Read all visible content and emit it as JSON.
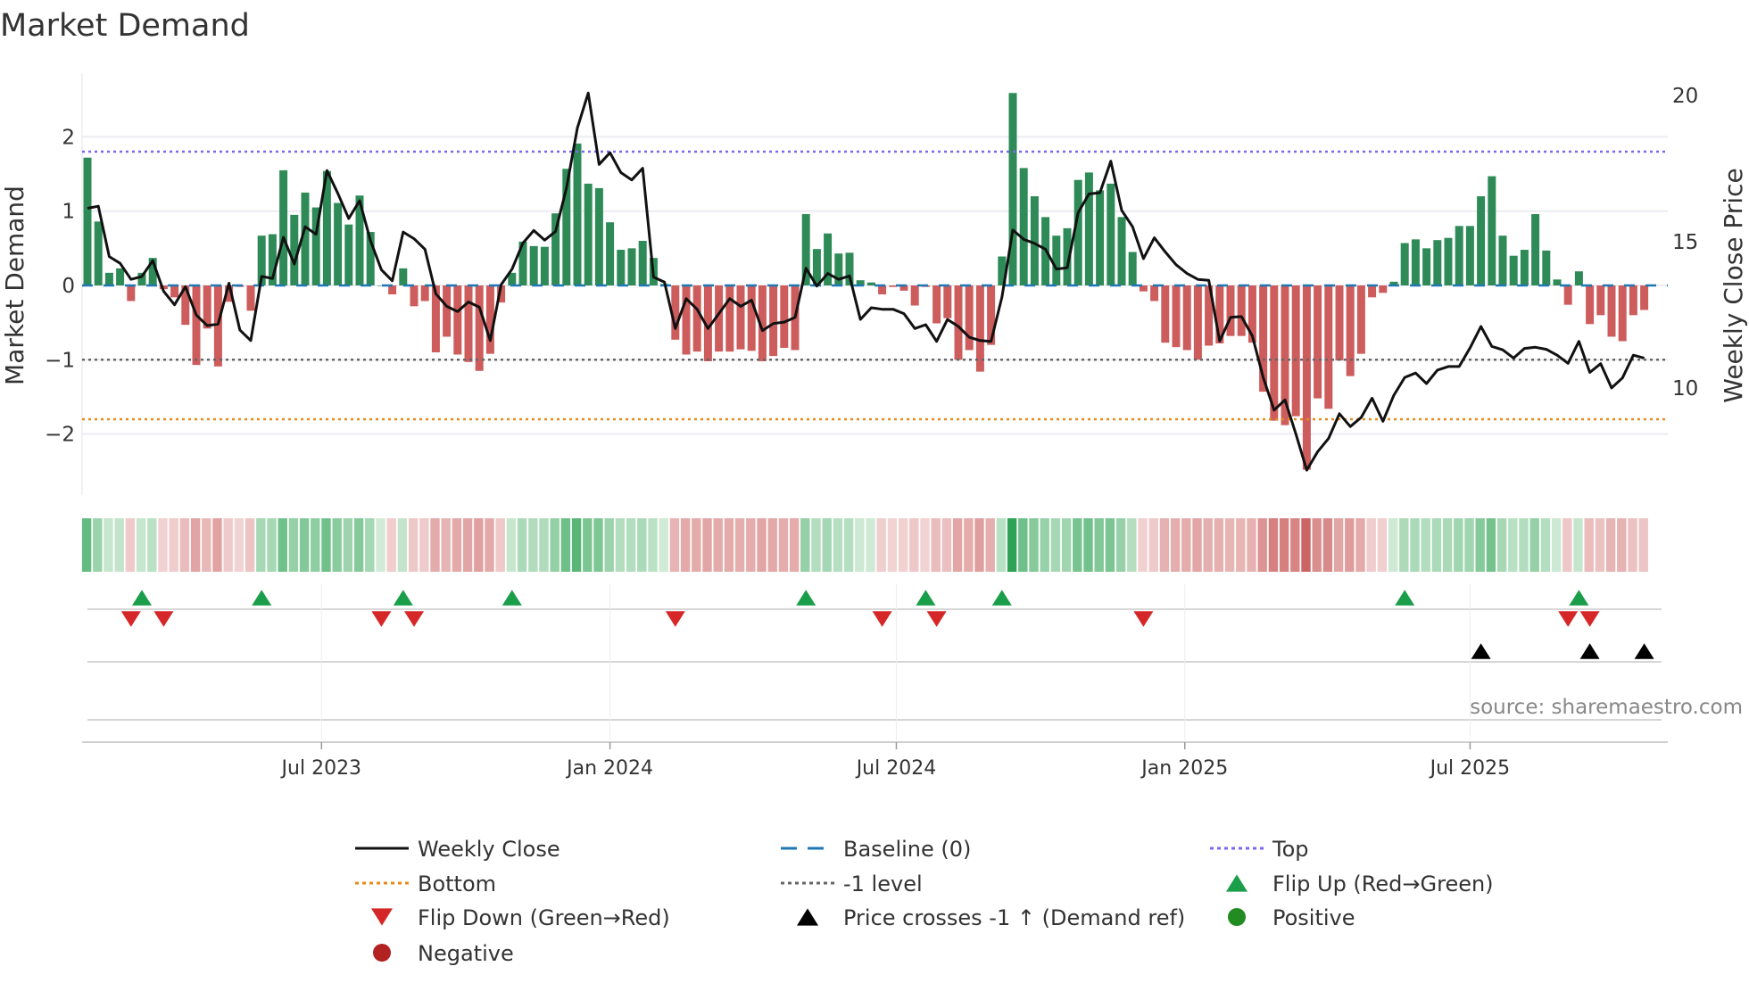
{
  "chart_data": {
    "type": "bar",
    "title": "Market Demand",
    "ylabel": "Market Demand",
    "y2label": "Weekly Close Price",
    "ylim": [
      -2.6,
      2.8
    ],
    "y2lim": [
      7.6,
      23.3
    ],
    "yticks": [
      -2,
      -1,
      0,
      1,
      2
    ],
    "ytick_labels": [
      "−2",
      "−1",
      "0",
      "1",
      "2"
    ],
    "y2ticks": [
      10,
      15,
      20
    ],
    "y2tick_labels": [
      "10",
      "15",
      "20"
    ],
    "xtick_labels": [
      "Jul 2023",
      "Jan 2024",
      "Jul 2024",
      "Jan 2025",
      "Jul 2025"
    ],
    "xtick_index": [
      21.5,
      48,
      74.3,
      100.8,
      127
    ],
    "frequency": "weekly",
    "levels": {
      "top": 1.8,
      "bottom": -1.8,
      "minus_one": -1,
      "baseline": 0
    },
    "demand": [
      1.72,
      0.86,
      0.17,
      0.23,
      -0.21,
      0.17,
      0.37,
      -0.05,
      -0.16,
      -0.53,
      -1.07,
      -0.58,
      -1.09,
      -0.22,
      -0.02,
      -0.34,
      0.67,
      0.69,
      1.55,
      0.95,
      1.25,
      1.05,
      1.54,
      1.11,
      0.82,
      1.21,
      0.72,
      0.0,
      -0.12,
      0.23,
      -0.28,
      -0.21,
      -0.9,
      -0.69,
      -0.93,
      -1.03,
      -1.15,
      -0.92,
      -0.23,
      0.17,
      0.59,
      0.53,
      0.52,
      0.97,
      1.57,
      1.91,
      1.37,
      1.31,
      0.85,
      0.48,
      0.5,
      0.6,
      0.37,
      0.02,
      -0.73,
      -0.93,
      -0.89,
      -1.02,
      -0.89,
      -0.89,
      -0.86,
      -0.88,
      -1.02,
      -0.95,
      -0.84,
      -0.87,
      0.96,
      0.49,
      0.7,
      0.43,
      0.44,
      0.07,
      0.04,
      -0.12,
      -0.02,
      -0.07,
      -0.27,
      -0.02,
      -0.51,
      -0.44,
      -1.0,
      -0.87,
      -1.16,
      -0.8,
      0.39,
      2.59,
      1.58,
      1.2,
      0.92,
      0.67,
      0.77,
      1.42,
      1.52,
      1.28,
      1.37,
      0.92,
      0.45,
      -0.08,
      -0.21,
      -0.77,
      -0.83,
      -0.87,
      -1.0,
      -0.81,
      -0.78,
      -0.68,
      -0.68,
      -0.77,
      -1.43,
      -1.82,
      -1.88,
      -1.76,
      -2.48,
      -1.52,
      -1.66,
      -1.01,
      -1.22,
      -0.92,
      -0.16,
      -0.1,
      0.05,
      0.57,
      0.62,
      0.5,
      0.61,
      0.64,
      0.8,
      0.8,
      1.2,
      1.47,
      0.67,
      0.4,
      0.48,
      0.96,
      0.47,
      0.08,
      -0.26,
      0.19,
      -0.52,
      -0.4,
      -0.69,
      -0.75,
      -0.4,
      -0.33
    ],
    "weekly_close": [
      17.18,
      17.25,
      15.53,
      15.3,
      14.75,
      14.85,
      15.39,
      14.34,
      13.88,
      14.5,
      13.53,
      13.17,
      13.22,
      14.62,
      13.02,
      12.66,
      14.85,
      14.78,
      16.19,
      15.27,
      16.55,
      16.29,
      18.47,
      17.69,
      16.83,
      17.44,
      16.07,
      15.08,
      14.7,
      16.37,
      16.14,
      15.78,
      14.26,
      13.83,
      13.65,
      13.98,
      13.8,
      12.66,
      14.57,
      15.1,
      15.99,
      16.42,
      16.09,
      16.39,
      17.87,
      19.92,
      21.12,
      18.68,
      19.08,
      18.4,
      18.15,
      18.55,
      14.83,
      14.66,
      13.07,
      14.09,
      13.73,
      13.07,
      13.58,
      14.09,
      13.83,
      14.04,
      13.0,
      13.24,
      13.29,
      13.45,
      15.13,
      14.52,
      14.95,
      14.75,
      14.87,
      13.38,
      13.78,
      13.73,
      13.73,
      13.58,
      13.07,
      13.2,
      12.63,
      13.38,
      13.14,
      12.77,
      12.66,
      12.63,
      14.14,
      16.44,
      16.12,
      15.98,
      15.78,
      15.1,
      15.15,
      17.03,
      17.67,
      17.71,
      18.79,
      17.11,
      16.55,
      15.46,
      16.17,
      15.69,
      15.25,
      14.95,
      14.75,
      14.72,
      12.64,
      13.45,
      13.48,
      12.82,
      11.4,
      10.28,
      10.63,
      9.47,
      8.23,
      8.86,
      9.31,
      10.16,
      9.72,
      10.03,
      10.69,
      9.9,
      10.79,
      11.4,
      11.55,
      11.19,
      11.65,
      11.77,
      11.77,
      12.41,
      13.14,
      12.46,
      12.34,
      12.06,
      12.39,
      12.43,
      12.36,
      12.16,
      11.88,
      12.63,
      11.57,
      11.87,
      11.04,
      11.38,
      12.16,
      12.06
    ],
    "flip_up_index": [
      5,
      16,
      29,
      39,
      66,
      77,
      84,
      121,
      137
    ],
    "flip_down_index": [
      4,
      7,
      27,
      30,
      54,
      73,
      78,
      97,
      136,
      138
    ],
    "price_cross_index": [
      128,
      138,
      143
    ],
    "legend": {
      "placement": "bottom",
      "items": [
        {
          "label": "Weekly Close",
          "symbol": "line-solid",
          "color": "#111111"
        },
        {
          "label": "Baseline (0)",
          "symbol": "line-dashed",
          "color": "#1f77b4"
        },
        {
          "label": "Top",
          "symbol": "line-dotted",
          "color": "#7b68ee"
        },
        {
          "label": "Bottom",
          "symbol": "line-dotted",
          "color": "#e8891c"
        },
        {
          "label": "-1 level",
          "symbol": "line-dotted",
          "color": "#666666"
        },
        {
          "label": "Flip Up (Red→Green)",
          "symbol": "triangle-up",
          "color": "#1a9e4a"
        },
        {
          "label": "Flip Down (Green→Red)",
          "symbol": "triangle-down",
          "color": "#d62728"
        },
        {
          "label": "Price crosses -1 ↑ (Demand ref)",
          "symbol": "triangle-up",
          "color": "#000000"
        },
        {
          "label": "Positive",
          "symbol": "circle",
          "color": "#228b22"
        },
        {
          "label": "Negative",
          "symbol": "circle",
          "color": "#b22222"
        }
      ]
    },
    "source": "source: sharemaestro.com",
    "colors": {
      "positive_bar": "#2e8b57",
      "negative_bar": "#cd5c5c"
    }
  }
}
